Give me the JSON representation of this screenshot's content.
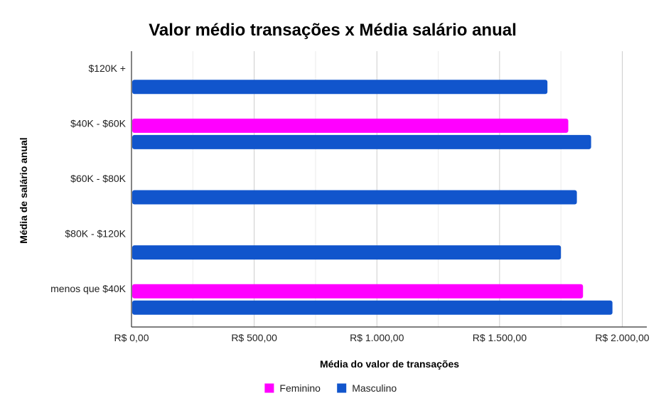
{
  "chart_data": {
    "type": "bar",
    "orientation": "horizontal",
    "title": "Valor médio transações x Média salário anual",
    "xlabel": "Média do valor de transações",
    "ylabel": "Média de salário anual",
    "categories": [
      "$120K +",
      "$40K - $60K",
      "$60K - $80K",
      "$80K - $120K",
      "menos que $40K"
    ],
    "series": [
      {
        "name": "Feminino",
        "color": "#ff00ff",
        "values": [
          null,
          1780,
          null,
          null,
          1840
        ]
      },
      {
        "name": "Masculino",
        "color": "#1155cc",
        "values": [
          1695,
          1873,
          1815,
          1750,
          1960
        ]
      }
    ],
    "xlim": [
      0,
      2100
    ],
    "x_ticks": [
      0,
      500,
      1000,
      1500,
      2000
    ],
    "x_tick_labels": [
      "R$ 0,00",
      "R$ 500,00",
      "R$ 1.000,00",
      "R$ 1.500,00",
      "R$ 2.000,00"
    ],
    "grid": true,
    "legend_position": "bottom"
  }
}
